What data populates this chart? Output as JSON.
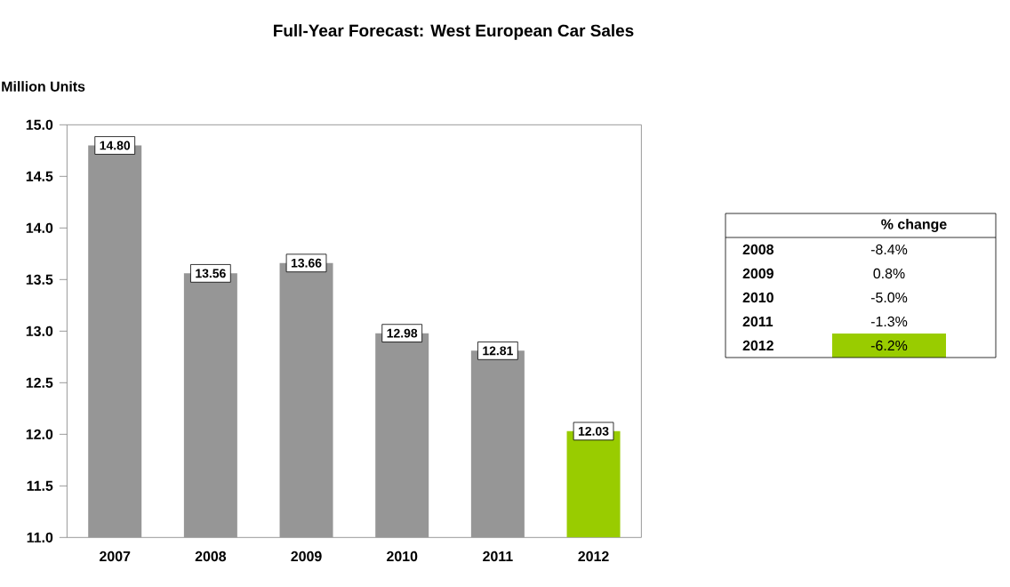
{
  "chart_data": {
    "type": "bar",
    "title": "Full-Year Forecast: West European Car Sales",
    "ylabel": "Million Units",
    "categories": [
      "2007",
      "2008",
      "2009",
      "2010",
      "2011",
      "2012"
    ],
    "values": [
      14.8,
      13.56,
      13.66,
      12.98,
      12.81,
      12.03
    ],
    "value_labels": [
      "14.80",
      "13.56",
      "13.66",
      "12.98",
      "12.81",
      "12.03"
    ],
    "colors": [
      "#969696",
      "#969696",
      "#969696",
      "#969696",
      "#969696",
      "#99cc00"
    ],
    "ylim": [
      11,
      15
    ],
    "yticks": [
      {
        "value": 11,
        "label": "11.0"
      },
      {
        "value": 11.5,
        "label": "11.5"
      },
      {
        "value": 12,
        "label": "12.0"
      },
      {
        "value": 12.5,
        "label": "12.5"
      },
      {
        "value": 13,
        "label": "13.0"
      },
      {
        "value": 13.5,
        "label": "13.5"
      },
      {
        "value": 14,
        "label": "14.0"
      },
      {
        "value": 14.5,
        "label": "14.5"
      },
      {
        "value": 15,
        "label": "15.0"
      }
    ],
    "grid": false,
    "annotations": [
      "% change",
      "2008",
      "-8.4%",
      "2009",
      "0.8%",
      "2010",
      "-5.0%",
      "2011",
      "-1.3%",
      "2012",
      "-6.2%"
    ]
  }
}
